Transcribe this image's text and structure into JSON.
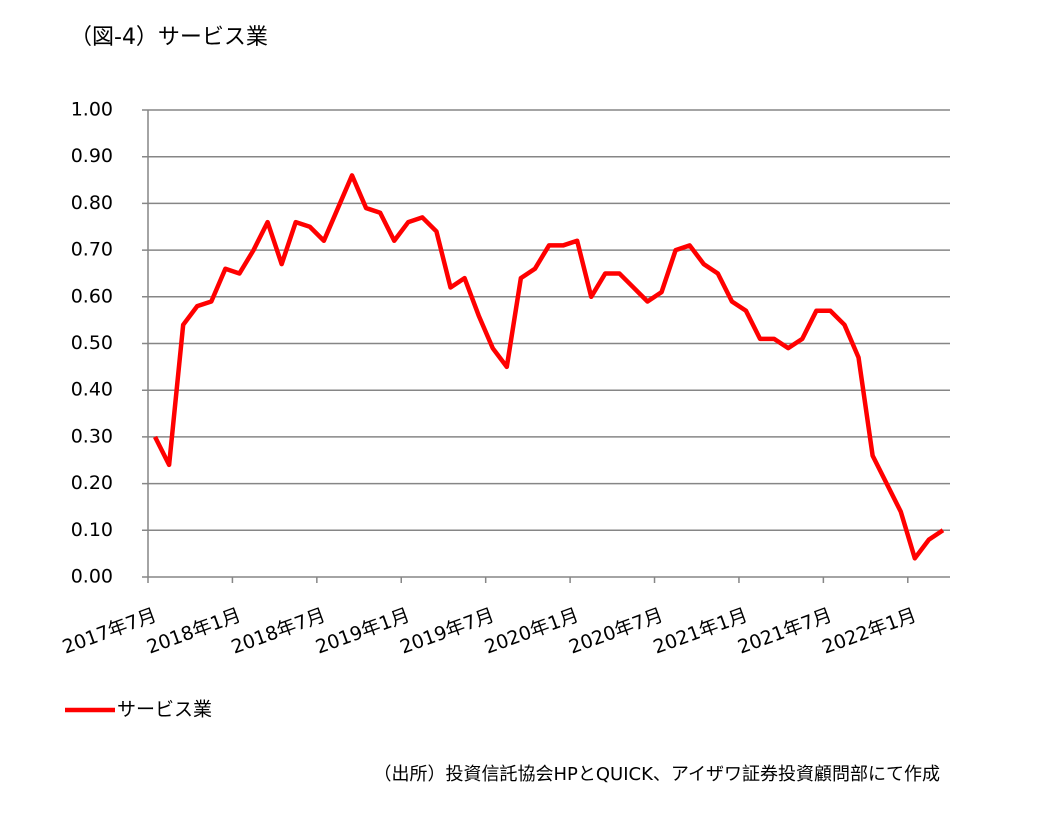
{
  "title": "（図-4）サービス業",
  "source": "（出所）投資信託協会HPとQUICK、アイザワ証券投資顧問部にて作成",
  "chart_data": {
    "type": "line",
    "categories": [
      "2017年7月",
      null,
      null,
      null,
      null,
      null,
      "2018年1月",
      null,
      null,
      null,
      null,
      null,
      "2018年7月",
      null,
      null,
      null,
      null,
      null,
      "2019年1月",
      null,
      null,
      null,
      null,
      null,
      "2019年7月",
      null,
      null,
      null,
      null,
      null,
      "2020年1月",
      null,
      null,
      null,
      null,
      null,
      "2020年7月",
      null,
      null,
      null,
      null,
      null,
      "2021年1月",
      null,
      null,
      null,
      null,
      null,
      "2021年7月",
      null,
      null,
      null,
      null,
      null,
      "2022年1月",
      null,
      null
    ],
    "series": [
      {
        "name": "サービス業",
        "color": "#ff0000",
        "values": [
          0.3,
          0.24,
          0.54,
          0.58,
          0.59,
          0.66,
          0.65,
          0.7,
          0.76,
          0.67,
          0.76,
          0.75,
          0.72,
          0.79,
          0.86,
          0.79,
          0.78,
          0.72,
          0.76,
          0.77,
          0.74,
          0.62,
          0.64,
          0.56,
          0.49,
          0.45,
          0.64,
          0.66,
          0.71,
          0.71,
          0.72,
          0.6,
          0.65,
          0.65,
          0.62,
          0.59,
          0.61,
          0.7,
          0.71,
          0.67,
          0.65,
          0.59,
          0.57,
          0.51,
          0.51,
          0.49,
          0.51,
          0.57,
          0.57,
          0.54,
          0.47,
          0.26,
          0.2,
          0.14,
          0.04,
          0.08,
          0.1
        ]
      }
    ],
    "ylim": [
      0,
      1
    ],
    "yticks": [
      {
        "value": 0,
        "label": "0.00"
      },
      {
        "value": 0.1,
        "label": "0.10"
      },
      {
        "value": 0.2,
        "label": "0.20"
      },
      {
        "value": 0.3,
        "label": "0.30"
      },
      {
        "value": 0.4,
        "label": "0.40"
      },
      {
        "value": 0.5,
        "label": "0.50"
      },
      {
        "value": 0.6,
        "label": "0.60"
      },
      {
        "value": 0.7,
        "label": "0.70"
      },
      {
        "value": 0.8,
        "label": "0.80"
      },
      {
        "value": 0.9,
        "label": "0.90"
      },
      {
        "value": 1,
        "label": "1.00"
      }
    ],
    "grid": true,
    "legend": "bottom-left"
  }
}
